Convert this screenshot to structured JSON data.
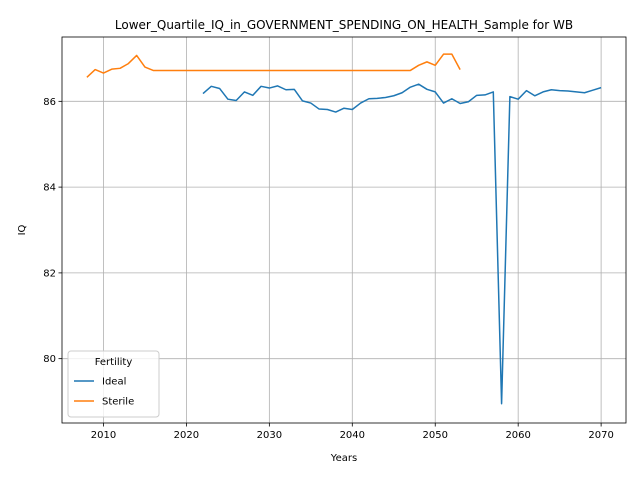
{
  "chart_data": {
    "type": "line",
    "title": "Lower_Quartile_IQ_in_GOVERNMENT_SPENDING_ON_HEALTH_Sample for WB",
    "xlabel": "Years",
    "ylabel": "IQ",
    "xlim": [
      2005,
      2073
    ],
    "ylim": [
      78.5,
      87.5
    ],
    "xticks": [
      2010,
      2020,
      2030,
      2040,
      2050,
      2060,
      2070
    ],
    "yticks": [
      80,
      82,
      84,
      86
    ],
    "grid": true,
    "legend": {
      "title": "Fertility",
      "placement": "lower-left"
    },
    "series": [
      {
        "name": "Ideal",
        "color": "#1f77b4",
        "x": [
          2022,
          2023,
          2024,
          2025,
          2026,
          2027,
          2028,
          2029,
          2030,
          2031,
          2032,
          2033,
          2034,
          2035,
          2036,
          2037,
          2038,
          2039,
          2040,
          2041,
          2042,
          2043,
          2044,
          2045,
          2046,
          2047,
          2048,
          2049,
          2050,
          2051,
          2052,
          2053,
          2054,
          2055,
          2056,
          2057,
          2058,
          2059,
          2060,
          2061,
          2062,
          2063,
          2064,
          2065,
          2066,
          2067,
          2068,
          2069,
          2070
        ],
        "y": [
          86.18,
          86.35,
          86.3,
          86.05,
          86.02,
          86.22,
          86.14,
          86.35,
          86.31,
          86.36,
          86.27,
          86.28,
          86.01,
          85.96,
          85.82,
          85.81,
          85.75,
          85.84,
          85.81,
          85.96,
          86.06,
          86.07,
          86.09,
          86.13,
          86.2,
          86.33,
          86.4,
          86.28,
          86.22,
          85.96,
          86.06,
          85.95,
          85.99,
          86.14,
          86.15,
          86.22,
          78.95,
          86.11,
          86.05,
          86.25,
          86.13,
          86.22,
          86.27,
          86.25,
          86.24,
          86.22,
          86.2,
          86.26,
          86.32
        ]
      },
      {
        "name": "Sterile",
        "color": "#ff7f0e",
        "x": [
          2008,
          2009,
          2010,
          2011,
          2012,
          2013,
          2014,
          2015,
          2016,
          2017,
          2018,
          2019,
          2020,
          2021,
          2022,
          2023,
          2024,
          2025,
          2026,
          2027,
          2028,
          2029,
          2030,
          2031,
          2032,
          2033,
          2034,
          2035,
          2036,
          2037,
          2038,
          2039,
          2040,
          2041,
          2042,
          2043,
          2044,
          2045,
          2046,
          2047,
          2048,
          2049,
          2050,
          2051,
          2052,
          2053
        ],
        "y": [
          86.56,
          86.74,
          86.66,
          86.75,
          86.77,
          86.88,
          87.07,
          86.8,
          86.72,
          86.72,
          86.72,
          86.72,
          86.72,
          86.72,
          86.72,
          86.72,
          86.72,
          86.72,
          86.72,
          86.72,
          86.72,
          86.72,
          86.72,
          86.72,
          86.72,
          86.72,
          86.72,
          86.72,
          86.72,
          86.72,
          86.72,
          86.72,
          86.72,
          86.72,
          86.72,
          86.72,
          86.72,
          86.72,
          86.72,
          86.72,
          86.84,
          86.92,
          86.84,
          87.1,
          87.1,
          86.74
        ]
      }
    ]
  }
}
